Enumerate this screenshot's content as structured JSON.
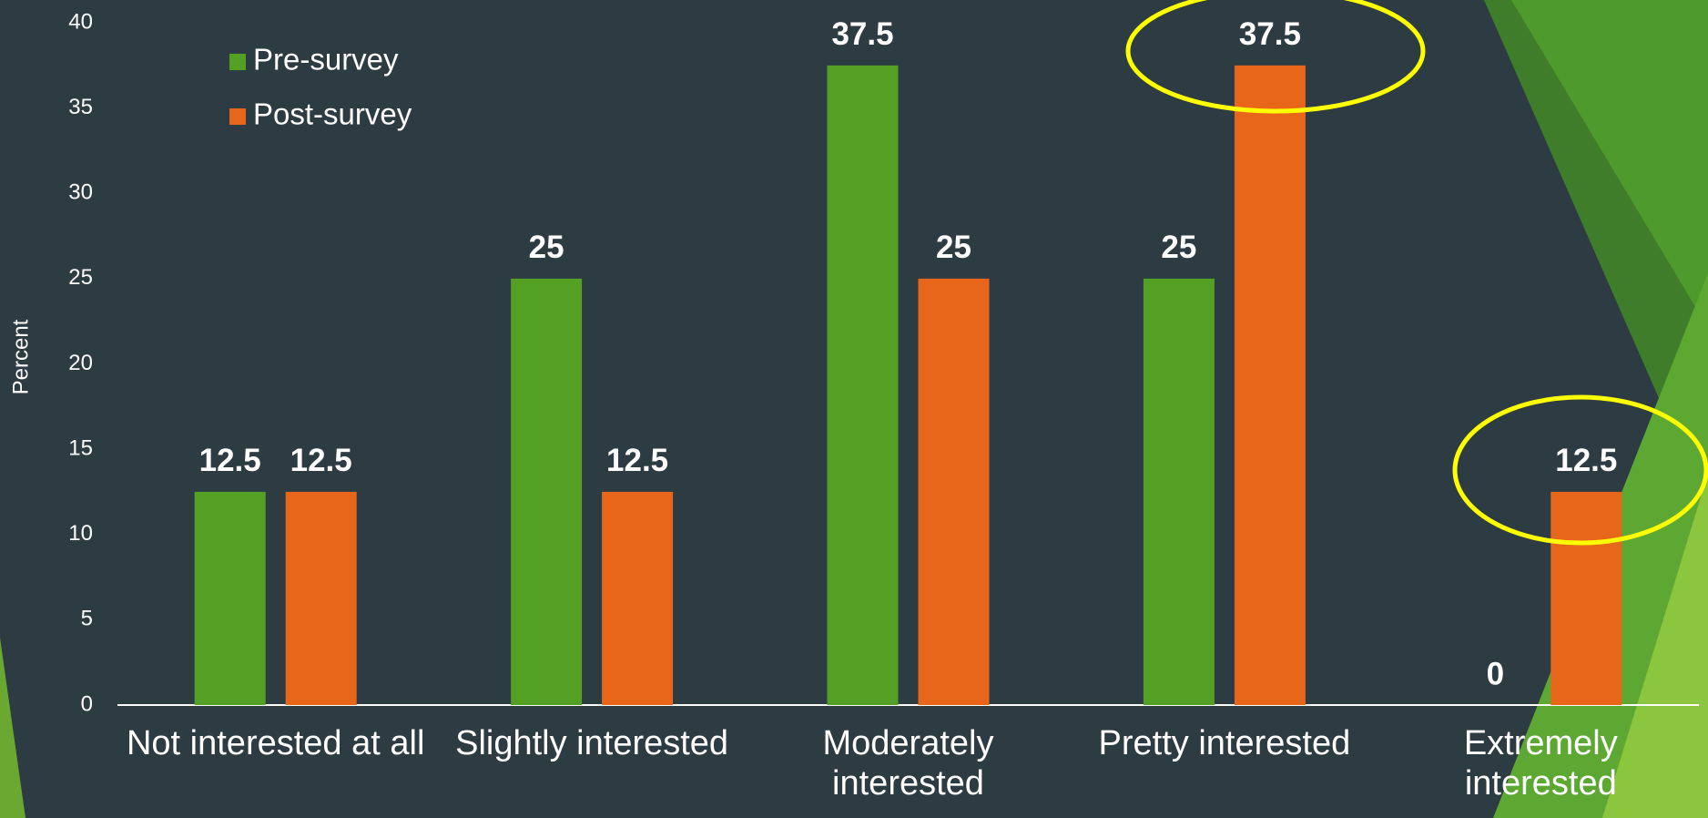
{
  "chart_data": {
    "type": "bar",
    "y_label": "Percent",
    "categories": [
      "Not interested at all",
      "Slightly interested",
      "Moderately interested",
      "Pretty interested",
      "Extremely interested"
    ],
    "series": [
      {
        "name": "Pre-survey",
        "color": "#53a025",
        "values": [
          12.5,
          25,
          37.5,
          25,
          0
        ]
      },
      {
        "name": "Post-survey",
        "color": "#e8661a",
        "values": [
          12.5,
          12.5,
          25,
          37.5,
          12.5
        ]
      }
    ],
    "ylim": [
      0,
      40
    ],
    "yticks": [
      0,
      5,
      10,
      15,
      20,
      25,
      30,
      35,
      40
    ],
    "legend": "upper left"
  }
}
